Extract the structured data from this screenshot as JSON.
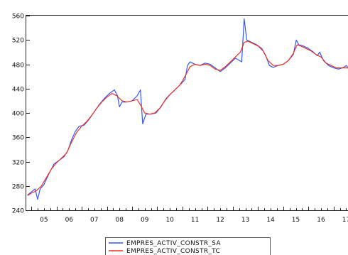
{
  "chart_data": {
    "type": "line",
    "title": "",
    "xlabel": "",
    "ylabel": "",
    "x_range": [
      2004.8,
      2017.6
    ],
    "ylim": [
      240,
      560
    ],
    "y_ticks": [
      240,
      280,
      320,
      360,
      400,
      440,
      480,
      520,
      560
    ],
    "y_tick_labels": [
      "240",
      "280",
      "320",
      "360",
      "400",
      "440",
      "480",
      "520",
      "560"
    ],
    "x_ticks": [
      2005,
      2006,
      2007,
      2008,
      2009,
      2010,
      2011,
      2012,
      2013,
      2014,
      2015,
      2016,
      2017
    ],
    "x_tick_labels": [
      "05",
      "06",
      "07",
      "08",
      "09",
      "10",
      "11",
      "12",
      "13",
      "14",
      "15",
      "16",
      "17"
    ],
    "grid": false,
    "legend_position": "bottom-center",
    "series": [
      {
        "name": "EMPRES_ACTIV_CONSTR_SA",
        "color": "#3355ff",
        "points": [
          [
            2004.85,
            265
          ],
          [
            2005.0,
            270
          ],
          [
            2005.15,
            275
          ],
          [
            2005.25,
            258
          ],
          [
            2005.35,
            275
          ],
          [
            2005.5,
            282
          ],
          [
            2005.7,
            300
          ],
          [
            2005.9,
            316
          ],
          [
            2006.1,
            322
          ],
          [
            2006.3,
            328
          ],
          [
            2006.45,
            338
          ],
          [
            2006.6,
            356
          ],
          [
            2006.75,
            370
          ],
          [
            2006.9,
            378
          ],
          [
            2007.1,
            380
          ],
          [
            2007.3,
            390
          ],
          [
            2007.5,
            402
          ],
          [
            2007.7,
            414
          ],
          [
            2007.9,
            424
          ],
          [
            2008.1,
            432
          ],
          [
            2008.3,
            438
          ],
          [
            2008.42,
            428
          ],
          [
            2008.5,
            410
          ],
          [
            2008.6,
            418
          ],
          [
            2008.8,
            418
          ],
          [
            2009.0,
            420
          ],
          [
            2009.2,
            428
          ],
          [
            2009.33,
            438
          ],
          [
            2009.42,
            382
          ],
          [
            2009.55,
            398
          ],
          [
            2009.75,
            398
          ],
          [
            2009.95,
            400
          ],
          [
            2010.15,
            410
          ],
          [
            2010.35,
            424
          ],
          [
            2010.55,
            432
          ],
          [
            2010.75,
            440
          ],
          [
            2010.95,
            448
          ],
          [
            2011.1,
            455
          ],
          [
            2011.2,
            478
          ],
          [
            2011.3,
            484
          ],
          [
            2011.4,
            482
          ],
          [
            2011.5,
            480
          ],
          [
            2011.7,
            478
          ],
          [
            2011.9,
            482
          ],
          [
            2012.1,
            480
          ],
          [
            2012.3,
            474
          ],
          [
            2012.5,
            468
          ],
          [
            2012.7,
            474
          ],
          [
            2012.9,
            482
          ],
          [
            2013.1,
            490
          ],
          [
            2013.35,
            484
          ],
          [
            2013.45,
            555
          ],
          [
            2013.55,
            520
          ],
          [
            2013.75,
            516
          ],
          [
            2013.95,
            512
          ],
          [
            2014.15,
            506
          ],
          [
            2014.3,
            495
          ],
          [
            2014.45,
            478
          ],
          [
            2014.6,
            475
          ],
          [
            2014.8,
            478
          ],
          [
            2015.0,
            480
          ],
          [
            2015.2,
            486
          ],
          [
            2015.4,
            496
          ],
          [
            2015.52,
            520
          ],
          [
            2015.62,
            512
          ],
          [
            2015.8,
            510
          ],
          [
            2016.0,
            506
          ],
          [
            2016.2,
            500
          ],
          [
            2016.35,
            494
          ],
          [
            2016.45,
            500
          ],
          [
            2016.6,
            486
          ],
          [
            2016.8,
            478
          ],
          [
            2017.0,
            474
          ],
          [
            2017.2,
            472
          ],
          [
            2017.4,
            475
          ],
          [
            2017.5,
            478
          ],
          [
            2017.6,
            472
          ]
        ]
      },
      {
        "name": "EMPRES_ACTIV_CONSTR_TC",
        "color": "#ee3322",
        "points": [
          [
            2004.85,
            264
          ],
          [
            2005.0,
            268
          ],
          [
            2005.2,
            272
          ],
          [
            2005.4,
            280
          ],
          [
            2005.6,
            294
          ],
          [
            2005.8,
            308
          ],
          [
            2006.0,
            318
          ],
          [
            2006.2,
            326
          ],
          [
            2006.4,
            334
          ],
          [
            2006.6,
            352
          ],
          [
            2006.8,
            368
          ],
          [
            2007.0,
            378
          ],
          [
            2007.2,
            386
          ],
          [
            2007.4,
            396
          ],
          [
            2007.6,
            408
          ],
          [
            2007.8,
            418
          ],
          [
            2008.0,
            426
          ],
          [
            2008.2,
            432
          ],
          [
            2008.4,
            428
          ],
          [
            2008.6,
            420
          ],
          [
            2008.8,
            418
          ],
          [
            2009.0,
            420
          ],
          [
            2009.2,
            422
          ],
          [
            2009.35,
            412
          ],
          [
            2009.5,
            400
          ],
          [
            2009.7,
            398
          ],
          [
            2009.9,
            400
          ],
          [
            2010.1,
            408
          ],
          [
            2010.3,
            420
          ],
          [
            2010.5,
            430
          ],
          [
            2010.7,
            438
          ],
          [
            2010.9,
            446
          ],
          [
            2011.1,
            460
          ],
          [
            2011.3,
            476
          ],
          [
            2011.5,
            480
          ],
          [
            2011.7,
            478
          ],
          [
            2011.9,
            480
          ],
          [
            2012.1,
            478
          ],
          [
            2012.3,
            472
          ],
          [
            2012.5,
            470
          ],
          [
            2012.7,
            476
          ],
          [
            2012.9,
            484
          ],
          [
            2013.1,
            492
          ],
          [
            2013.3,
            500
          ],
          [
            2013.45,
            516
          ],
          [
            2013.6,
            518
          ],
          [
            2013.8,
            514
          ],
          [
            2014.0,
            510
          ],
          [
            2014.2,
            502
          ],
          [
            2014.4,
            486
          ],
          [
            2014.6,
            478
          ],
          [
            2014.8,
            478
          ],
          [
            2015.0,
            480
          ],
          [
            2015.2,
            486
          ],
          [
            2015.4,
            498
          ],
          [
            2015.55,
            512
          ],
          [
            2015.7,
            510
          ],
          [
            2015.9,
            506
          ],
          [
            2016.1,
            502
          ],
          [
            2016.3,
            496
          ],
          [
            2016.5,
            492
          ],
          [
            2016.7,
            482
          ],
          [
            2016.9,
            478
          ],
          [
            2017.1,
            474
          ],
          [
            2017.3,
            474
          ],
          [
            2017.5,
            474
          ],
          [
            2017.6,
            474
          ]
        ]
      }
    ]
  }
}
